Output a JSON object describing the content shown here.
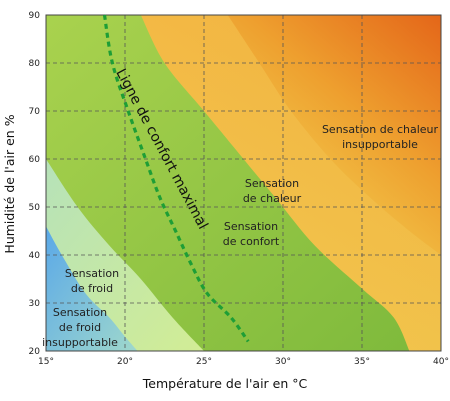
{
  "chart_data": {
    "type": "area",
    "xlabel": "Température de l'air en °C",
    "ylabel": "Humidité de l'air en %",
    "xlim": [
      15,
      40
    ],
    "ylim": [
      20,
      90
    ],
    "x_ticks": [
      {
        "value": 15,
        "label": "15°"
      },
      {
        "value": 20,
        "label": "20°"
      },
      {
        "value": 25,
        "label": "25°"
      },
      {
        "value": 30,
        "label": "30°"
      },
      {
        "value": 35,
        "label": "35°"
      },
      {
        "value": 40,
        "label": "40°"
      }
    ],
    "y_ticks": [
      {
        "value": 20,
        "label": "20"
      },
      {
        "value": 30,
        "label": "30"
      },
      {
        "value": 40,
        "label": "40"
      },
      {
        "value": 50,
        "label": "50"
      },
      {
        "value": 60,
        "label": "60"
      },
      {
        "value": 70,
        "label": "70"
      },
      {
        "value": 80,
        "label": "80"
      },
      {
        "value": 90,
        "label": "90"
      }
    ],
    "grid": true,
    "zones": [
      {
        "lines": [
          "Sensation",
          "de froid",
          "insupportable"
        ],
        "color": "#6fb4e6",
        "boundary": [
          [
            15,
            46
          ],
          [
            16,
            40
          ],
          [
            17.5,
            32
          ],
          [
            19,
            27
          ],
          [
            20,
            23
          ],
          [
            20.8,
            20
          ]
        ]
      },
      {
        "lines": [
          "Sensation",
          "de froid"
        ],
        "color": "#bfe5a6",
        "boundary": [
          [
            15,
            60
          ],
          [
            17,
            50
          ],
          [
            19,
            42
          ],
          [
            21,
            35
          ],
          [
            23,
            27
          ],
          [
            25,
            20
          ]
        ]
      },
      {
        "lines": [
          "Sensation",
          "de confort"
        ],
        "color": "#8fc44a",
        "boundary": [
          [
            21,
            90
          ],
          [
            22.5,
            80
          ],
          [
            25,
            70
          ],
          [
            27,
            62
          ],
          [
            29.5,
            52
          ],
          [
            32,
            42
          ],
          [
            35,
            33
          ],
          [
            37,
            27
          ],
          [
            38,
            20
          ]
        ]
      },
      {
        "lines": [
          "Sensation",
          "de chaleur"
        ],
        "color": "#f6d24f",
        "boundary": [
          [
            26.5,
            90
          ],
          [
            28.5,
            80
          ],
          [
            30.5,
            70
          ],
          [
            33,
            60
          ],
          [
            35.5,
            52
          ],
          [
            38,
            45
          ],
          [
            40,
            40
          ]
        ]
      },
      {
        "lines": [
          "Sensation de chaleur",
          "insupportable"
        ],
        "color": "#e96d20",
        "boundary": []
      }
    ],
    "curve": {
      "label": "Ligne de confort maximal",
      "color": "#1e9e36",
      "points": [
        [
          18.7,
          90
        ],
        [
          19.2,
          80
        ],
        [
          20.2,
          70
        ],
        [
          21.3,
          60
        ],
        [
          22.2,
          52
        ],
        [
          23.2,
          45
        ],
        [
          24.2,
          38
        ],
        [
          25.2,
          32
        ],
        [
          26.7,
          27
        ],
        [
          27.8,
          22
        ]
      ]
    }
  }
}
